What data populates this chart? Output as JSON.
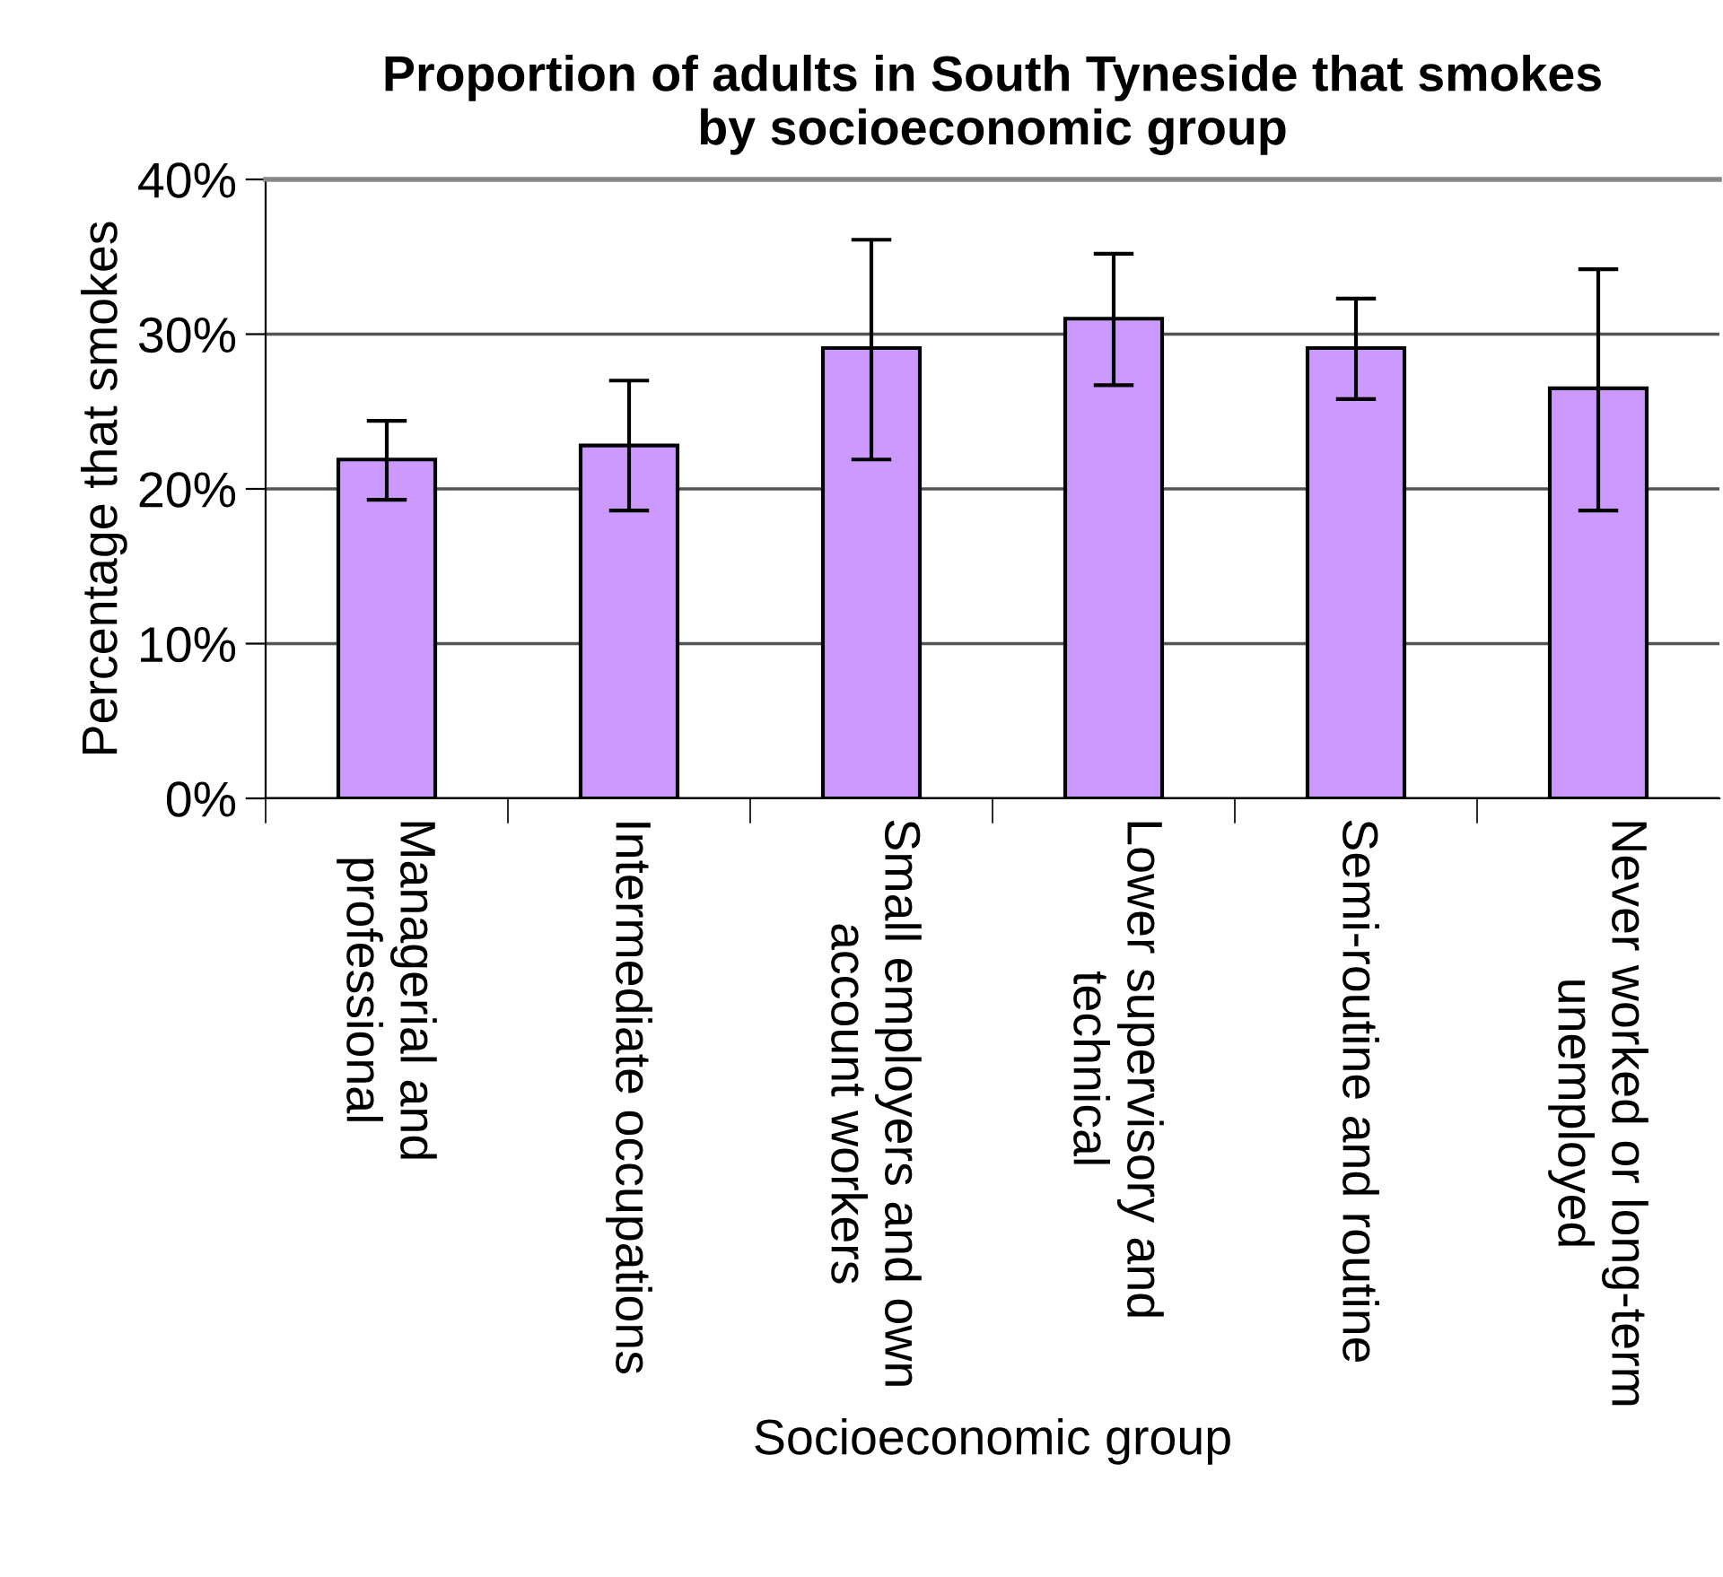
{
  "chart_data": {
    "type": "bar",
    "title": "Proportion of adults in South Tyneside that smokes\nby socioeconomic group",
    "xlabel": "Socioeconomic group",
    "ylabel": "Percentage that smokes",
    "categories": [
      "Managerial and\nprofessional",
      "Intermediate occupations",
      "Small employers and own\naccount workers",
      "Lower supervisory and\ntechnical",
      "Semi-routine and routine",
      "Never worked or long-term\nunemployed"
    ],
    "values": [
      21.9,
      22.8,
      29.1,
      31.0,
      29.1,
      26.5
    ],
    "errors": [
      [
        19.3,
        24.4
      ],
      [
        18.6,
        27.0
      ],
      [
        21.9,
        36.1
      ],
      [
        26.7,
        35.2
      ],
      [
        25.8,
        32.3
      ],
      [
        18.6,
        34.2
      ]
    ],
    "color": "#cc99ff",
    "ylim": [
      0,
      40
    ],
    "yticks": [
      {
        "value": 0,
        "label": "0%"
      },
      {
        "value": 10,
        "label": "10%"
      },
      {
        "value": 20,
        "label": "20%"
      },
      {
        "value": 30,
        "label": "30%"
      },
      {
        "value": 40,
        "label": "40%"
      }
    ],
    "grid": "y",
    "legend": false
  }
}
